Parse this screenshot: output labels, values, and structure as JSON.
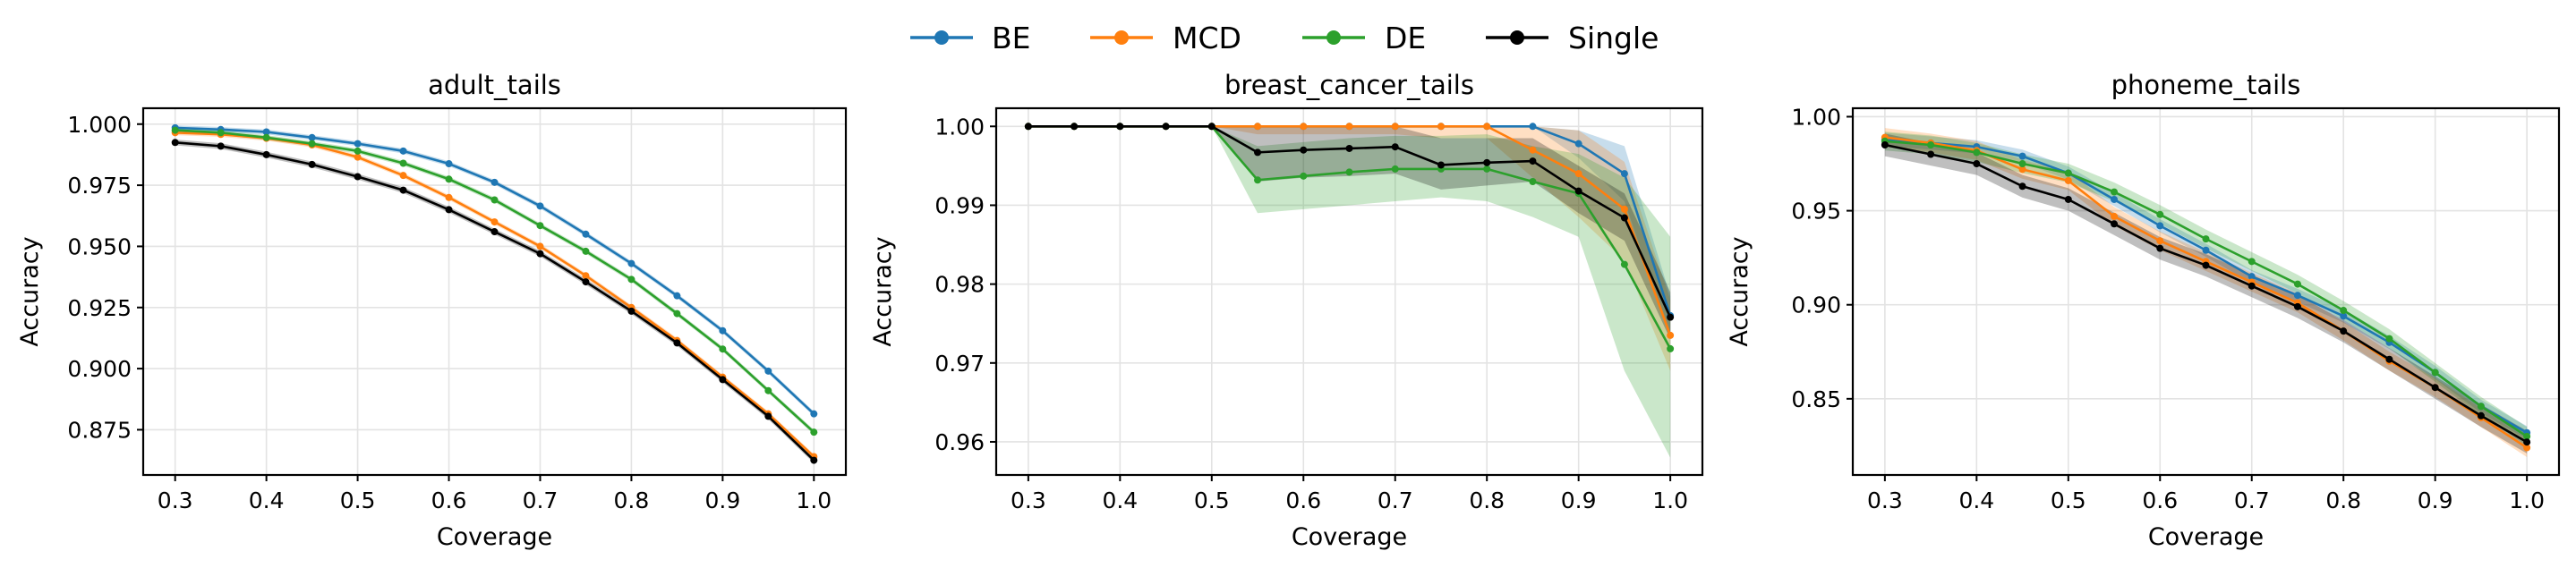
{
  "legend": {
    "items": [
      {
        "name": "BE",
        "color": "#1f77b4"
      },
      {
        "name": "MCD",
        "color": "#ff7f0e"
      },
      {
        "name": "DE",
        "color": "#2ca02c"
      },
      {
        "name": "Single",
        "color": "#000000"
      }
    ]
  },
  "chart_data": [
    {
      "type": "line",
      "title": "adult_tails",
      "xlabel": "Coverage",
      "ylabel": "Accuracy",
      "xlim": [
        0.265,
        1.035
      ],
      "ylim": [
        0.8565,
        1.0065
      ],
      "xticks": [
        0.3,
        0.4,
        0.5,
        0.6,
        0.7,
        0.8,
        0.9,
        1.0
      ],
      "xtick_labels": [
        "0.3",
        "0.4",
        "0.5",
        "0.6",
        "0.7",
        "0.8",
        "0.9",
        "1.0"
      ],
      "yticks": [
        0.875,
        0.9,
        0.925,
        0.95,
        0.975,
        1.0
      ],
      "ytick_labels": [
        "0.875",
        "0.900",
        "0.925",
        "0.950",
        "0.975",
        "1.000"
      ],
      "grid": true,
      "x": [
        0.3,
        0.35,
        0.4,
        0.45,
        0.5,
        0.55,
        0.6,
        0.65,
        0.7,
        0.75,
        0.8,
        0.85,
        0.9,
        0.95,
        1.0
      ],
      "series": [
        {
          "name": "BE",
          "values": [
            0.9985,
            0.9978,
            0.9968,
            0.9945,
            0.992,
            0.989,
            0.9838,
            0.9762,
            0.9665,
            0.955,
            0.943,
            0.9298,
            0.9155,
            0.899,
            0.8815
          ],
          "band": 0.001
        },
        {
          "name": "MCD",
          "values": [
            0.9965,
            0.9958,
            0.9942,
            0.9915,
            0.9865,
            0.979,
            0.97,
            0.96,
            0.95,
            0.938,
            0.925,
            0.9115,
            0.8965,
            0.8815,
            0.864
          ],
          "band": 0.001
        },
        {
          "name": "DE",
          "values": [
            0.9975,
            0.9965,
            0.9945,
            0.992,
            0.989,
            0.984,
            0.9775,
            0.969,
            0.9585,
            0.948,
            0.9365,
            0.9225,
            0.908,
            0.891,
            0.874
          ],
          "band": 0.001
        },
        {
          "name": "Single",
          "values": [
            0.9925,
            0.991,
            0.9875,
            0.9835,
            0.9785,
            0.973,
            0.965,
            0.956,
            0.947,
            0.9355,
            0.9235,
            0.9105,
            0.8955,
            0.8805,
            0.8625
          ],
          "band": 0.0012
        }
      ]
    },
    {
      "type": "line",
      "title": "breast_cancer_tails",
      "xlabel": "Coverage",
      "ylabel": "Accuracy",
      "xlim": [
        0.265,
        1.035
      ],
      "ylim": [
        0.9558,
        1.0023
      ],
      "xticks": [
        0.3,
        0.4,
        0.5,
        0.6,
        0.7,
        0.8,
        0.9,
        1.0
      ],
      "xtick_labels": [
        "0.3",
        "0.4",
        "0.5",
        "0.6",
        "0.7",
        "0.8",
        "0.9",
        "1.0"
      ],
      "yticks": [
        0.96,
        0.97,
        0.98,
        0.99,
        1.0
      ],
      "ytick_labels": [
        "0.96",
        "0.97",
        "0.98",
        "0.99",
        "1.00"
      ],
      "grid": true,
      "x": [
        0.3,
        0.35,
        0.4,
        0.45,
        0.5,
        0.55,
        0.6,
        0.65,
        0.7,
        0.75,
        0.8,
        0.85,
        0.9,
        0.95,
        1.0
      ],
      "series": [
        {
          "name": "BE",
          "values": [
            1.0,
            1.0,
            1.0,
            1.0,
            1.0,
            1.0,
            1.0,
            1.0,
            1.0,
            1.0,
            1.0,
            1.0,
            0.9978,
            0.994,
            0.976
          ],
          "lower": [
            1.0,
            1.0,
            1.0,
            1.0,
            1.0,
            1.0,
            1.0,
            1.0,
            1.0,
            1.0,
            1.0,
            1.0,
            0.996,
            0.9905,
            0.9735
          ],
          "upper": [
            1.0,
            1.0,
            1.0,
            1.0,
            1.0,
            1.0,
            1.0,
            1.0,
            1.0,
            1.0,
            1.0,
            1.0,
            0.9995,
            0.9975,
            0.9785
          ]
        },
        {
          "name": "MCD",
          "values": [
            1.0,
            1.0,
            1.0,
            1.0,
            1.0,
            1.0,
            1.0,
            1.0,
            1.0,
            1.0,
            1.0,
            0.997,
            0.994,
            0.9895,
            0.9735
          ],
          "lower": [
            1.0,
            1.0,
            1.0,
            1.0,
            1.0,
            0.999,
            0.999,
            0.999,
            0.999,
            0.9985,
            0.9985,
            0.9935,
            0.9885,
            0.983,
            0.969
          ],
          "upper": [
            1.0,
            1.0,
            1.0,
            1.0,
            1.0,
            1.0,
            1.0,
            1.0,
            1.0,
            1.0,
            1.0,
            1.0,
            0.9995,
            0.9955,
            0.978
          ]
        },
        {
          "name": "DE",
          "values": [
            1.0,
            1.0,
            1.0,
            1.0,
            1.0,
            0.9932,
            0.9937,
            0.9942,
            0.9946,
            0.9946,
            0.9946,
            0.993,
            0.9915,
            0.9825,
            0.9718
          ],
          "lower": [
            1.0,
            1.0,
            1.0,
            1.0,
            1.0,
            0.989,
            0.9895,
            0.99,
            0.9905,
            0.991,
            0.9905,
            0.9885,
            0.986,
            0.969,
            0.958
          ],
          "upper": [
            1.0,
            1.0,
            1.0,
            1.0,
            1.0,
            0.9975,
            0.998,
            0.9985,
            0.9988,
            0.9988,
            0.999,
            0.9975,
            0.9965,
            0.9935,
            0.986
          ]
        },
        {
          "name": "Single",
          "values": [
            1.0,
            1.0,
            1.0,
            1.0,
            1.0,
            0.9967,
            0.997,
            0.9972,
            0.9974,
            0.9951,
            0.9954,
            0.9956,
            0.9918,
            0.9884,
            0.9758
          ],
          "lower": [
            1.0,
            1.0,
            1.0,
            1.0,
            1.0,
            0.993,
            0.9935,
            0.9937,
            0.994,
            0.992,
            0.9925,
            0.993,
            0.989,
            0.9855,
            0.973
          ],
          "upper": [
            1.0,
            1.0,
            1.0,
            1.0,
            1.0,
            1.0,
            1.0,
            1.0,
            1.0,
            0.9985,
            0.9985,
            0.9985,
            0.995,
            0.9915,
            0.979
          ]
        }
      ]
    },
    {
      "type": "line",
      "title": "phoneme_tails",
      "xlabel": "Coverage",
      "ylabel": "Accuracy",
      "xlim": [
        0.265,
        1.035
      ],
      "ylim": [
        0.8095,
        1.0045
      ],
      "xticks": [
        0.3,
        0.4,
        0.5,
        0.6,
        0.7,
        0.8,
        0.9,
        1.0
      ],
      "xtick_labels": [
        "0.3",
        "0.4",
        "0.5",
        "0.6",
        "0.7",
        "0.8",
        "0.9",
        "1.0"
      ],
      "yticks": [
        0.85,
        0.9,
        0.95,
        1.0
      ],
      "ytick_labels": [
        "0.85",
        "0.90",
        "0.95",
        "1.00"
      ],
      "grid": true,
      "x": [
        0.3,
        0.35,
        0.4,
        0.45,
        0.5,
        0.55,
        0.6,
        0.65,
        0.7,
        0.75,
        0.8,
        0.85,
        0.9,
        0.95,
        1.0
      ],
      "series": [
        {
          "name": "BE",
          "values": [
            0.988,
            0.986,
            0.984,
            0.979,
            0.97,
            0.956,
            0.942,
            0.929,
            0.915,
            0.905,
            0.894,
            0.88,
            0.864,
            0.846,
            0.832
          ],
          "band": 0.0035
        },
        {
          "name": "MCD",
          "values": [
            0.989,
            0.986,
            0.982,
            0.972,
            0.966,
            0.947,
            0.934,
            0.923,
            0.912,
            0.901,
            0.886,
            0.87,
            0.856,
            0.84,
            0.824
          ],
          "band": 0.005
        },
        {
          "name": "DE",
          "values": [
            0.987,
            0.985,
            0.981,
            0.975,
            0.97,
            0.96,
            0.948,
            0.935,
            0.923,
            0.911,
            0.897,
            0.882,
            0.864,
            0.846,
            0.83
          ],
          "band": 0.005
        },
        {
          "name": "Single",
          "values": [
            0.985,
            0.98,
            0.975,
            0.963,
            0.956,
            0.943,
            0.93,
            0.921,
            0.91,
            0.899,
            0.886,
            0.871,
            0.856,
            0.841,
            0.827
          ],
          "band": 0.006
        }
      ]
    }
  ]
}
